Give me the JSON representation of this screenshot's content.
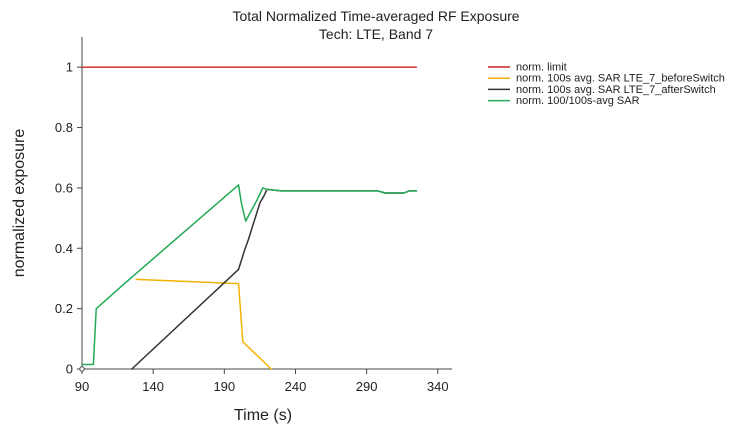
{
  "chart_data": {
    "type": "line",
    "title": "Total Normalized Time-averaged RF Exposure",
    "subtitle": "Tech: LTE, Band 7",
    "xlabel": "Time (s)",
    "ylabel": "normalized exposure",
    "xlim": [
      90,
      350
    ],
    "ylim": [
      0,
      1.1
    ],
    "xticks": [
      90,
      140,
      190,
      240,
      290,
      340
    ],
    "yticks": [
      0,
      0.2,
      0.4,
      0.6,
      0.8,
      1
    ],
    "xtick_labels": [
      "90",
      "140",
      "190",
      "240",
      "290",
      "340"
    ],
    "ytick_labels": [
      "0",
      "0.2",
      "0.4",
      "0.6",
      "0.8",
      "1"
    ],
    "legend_position": "right",
    "grid": false,
    "series": [
      {
        "name": "norm. limit",
        "color": "#cc2222",
        "x": [
          90,
          325
        ],
        "y": [
          1,
          1
        ]
      },
      {
        "name": "norm. 100s avg. SAR LTE_7_beforeSwitch",
        "color": "#f2b300",
        "x": [
          128,
          200,
          203,
          223
        ],
        "y": [
          0.297,
          0.283,
          0.09,
          0
        ]
      },
      {
        "name": "norm. 100s avg. SAR LTE_7_afterSwitch",
        "color": "#333333",
        "x": [
          125,
          200,
          204,
          207,
          215,
          218,
          220,
          230,
          250,
          280,
          298,
          303,
          316,
          320,
          325
        ],
        "y": [
          0,
          0.33,
          0.39,
          0.43,
          0.55,
          0.575,
          0.595,
          0.59,
          0.59,
          0.59,
          0.59,
          0.583,
          0.583,
          0.59,
          0.59
        ]
      },
      {
        "name": "norm. 100/100s-avg SAR",
        "color": "#22aa55",
        "x": [
          90,
          98,
          100,
          124,
          200,
          202,
          205,
          213,
          217,
          220,
          230,
          250,
          280,
          298,
          303,
          316,
          320,
          325
        ],
        "y": [
          0.015,
          0.015,
          0.2,
          0.3,
          0.61,
          0.55,
          0.49,
          0.56,
          0.6,
          0.595,
          0.59,
          0.59,
          0.59,
          0.59,
          0.583,
          0.583,
          0.59,
          0.59
        ]
      }
    ]
  }
}
